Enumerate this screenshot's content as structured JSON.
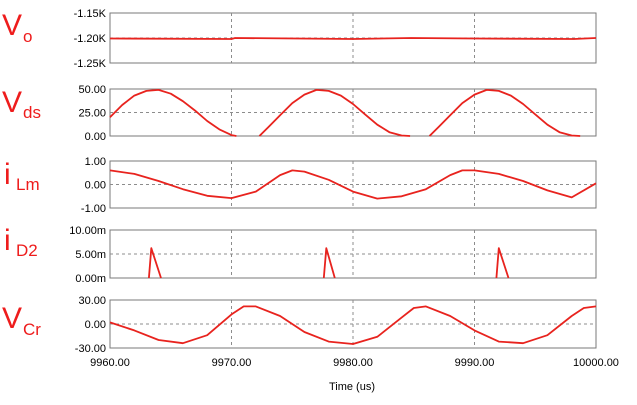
{
  "chart_data": {
    "type": "line",
    "x_axis": {
      "label": "Time (us)",
      "range": [
        9960,
        10000
      ],
      "ticks": [
        9960,
        9970,
        9980,
        9990,
        10000
      ],
      "tick_labels": [
        "9960.00",
        "9970.00",
        "9980.00",
        "9990.00",
        "10000.00"
      ],
      "grid": true
    },
    "colors": {
      "trace": "#e8231e",
      "label": "#ee1c1c",
      "grid": "#8c8c8c",
      "frame": "#7a7a7a"
    },
    "panels": [
      {
        "id": "vo",
        "label_main": "V",
        "label_sub": "o",
        "ylim": [
          -1250,
          -1150
        ],
        "y_ticks": [
          -1150,
          -1200,
          -1250
        ],
        "y_tick_labels": [
          "-1.15K",
          "-1.20K",
          "-1.25K"
        ],
        "series": {
          "x": [
            9960,
            9970,
            9970.3,
            9980,
            9984.8,
            9990,
            9998.2,
            10000
          ],
          "y": [
            -1201,
            -1202,
            -1200,
            -1202,
            -1200,
            -1201,
            -1202,
            -1200
          ]
        }
      },
      {
        "id": "vds",
        "label_main": "V",
        "label_sub": "ds",
        "ylim": [
          0,
          50
        ],
        "y_ticks": [
          50,
          25,
          0
        ],
        "y_tick_labels": [
          "50.00",
          "25.00",
          "0.00"
        ],
        "series": {
          "x": [
            9960,
            9961,
            9962,
            9963,
            9964,
            9965,
            9966,
            9967,
            9968,
            9969,
            9970,
            9970.4,
            9971,
            9972,
            9972.3,
            9973,
            9974,
            9975,
            9976,
            9977,
            9978,
            9979,
            9980,
            9981,
            9982,
            9983,
            9984,
            9984.7,
            9985,
            9986,
            9986.3,
            9987,
            9988,
            9989,
            9990,
            9991,
            9992,
            9993,
            9994,
            9995,
            9996,
            9997,
            9998,
            9998.7
          ],
          "y": [
            20,
            33,
            43,
            48,
            49,
            45,
            37,
            27,
            16,
            7,
            1,
            0,
            null,
            null,
            0,
            9,
            22,
            35,
            44,
            49,
            48,
            43,
            34,
            23,
            12,
            4,
            0.5,
            0,
            null,
            null,
            0,
            9,
            22,
            35,
            44,
            49,
            48,
            43,
            34,
            23,
            12,
            4,
            0.5,
            0
          ]
        }
      },
      {
        "id": "ilm",
        "label_main": "i",
        "label_sub": "Lm",
        "ylim": [
          -1,
          1
        ],
        "y_ticks": [
          1,
          0,
          -1
        ],
        "y_tick_labels": [
          "1.00",
          "0.00",
          "-1.00"
        ],
        "series": {
          "x": [
            9960,
            9962,
            9964,
            9966,
            9968,
            9970,
            9972,
            9974,
            9975,
            9976,
            9978,
            9980,
            9982,
            9984,
            9986,
            9988,
            9989,
            9990,
            9992,
            9994,
            9996,
            9998,
            10000
          ],
          "y": [
            0.6,
            0.45,
            0.15,
            -0.2,
            -0.48,
            -0.58,
            -0.3,
            0.4,
            0.6,
            0.55,
            0.2,
            -0.3,
            -0.6,
            -0.5,
            -0.2,
            0.4,
            0.6,
            0.6,
            0.45,
            0.15,
            -0.25,
            -0.55,
            0.05
          ]
        }
      },
      {
        "id": "id2",
        "label_main": "i",
        "label_sub": "D2",
        "ylim": [
          0,
          0.01
        ],
        "y_ticks": [
          0.01,
          0.005,
          0
        ],
        "y_tick_labels": [
          "10.00m",
          "5.00m",
          "0.00m"
        ],
        "spikes": [
          {
            "x_start": 9963.2,
            "x_peak": 9963.4,
            "x_end": 9964.2,
            "peak": 0.0062
          },
          {
            "x_start": 9977.6,
            "x_peak": 9977.8,
            "x_end": 9978.5,
            "peak": 0.0062
          },
          {
            "x_start": 9991.8,
            "x_peak": 9992.0,
            "x_end": 9992.8,
            "peak": 0.0062
          }
        ]
      },
      {
        "id": "vcr",
        "label_main": "V",
        "label_sub": "Cr",
        "ylim": [
          -30,
          30
        ],
        "y_ticks": [
          30,
          0,
          -30
        ],
        "y_tick_labels": [
          "30.00",
          "0.00",
          "-30.00"
        ],
        "series": {
          "x": [
            9960,
            9962,
            9964,
            9966,
            9968,
            9970,
            9971,
            9972,
            9974,
            9976,
            9978,
            9980,
            9982,
            9984,
            9985,
            9986,
            9988,
            9990,
            9992,
            9994,
            9996,
            9998,
            9999,
            10000
          ],
          "y": [
            2,
            -8,
            -20,
            -24,
            -14,
            12,
            22,
            22,
            10,
            -10,
            -22,
            -25,
            -16,
            8,
            20,
            22,
            10,
            -8,
            -22,
            -24,
            -14,
            10,
            20,
            22
          ]
        }
      }
    ]
  }
}
